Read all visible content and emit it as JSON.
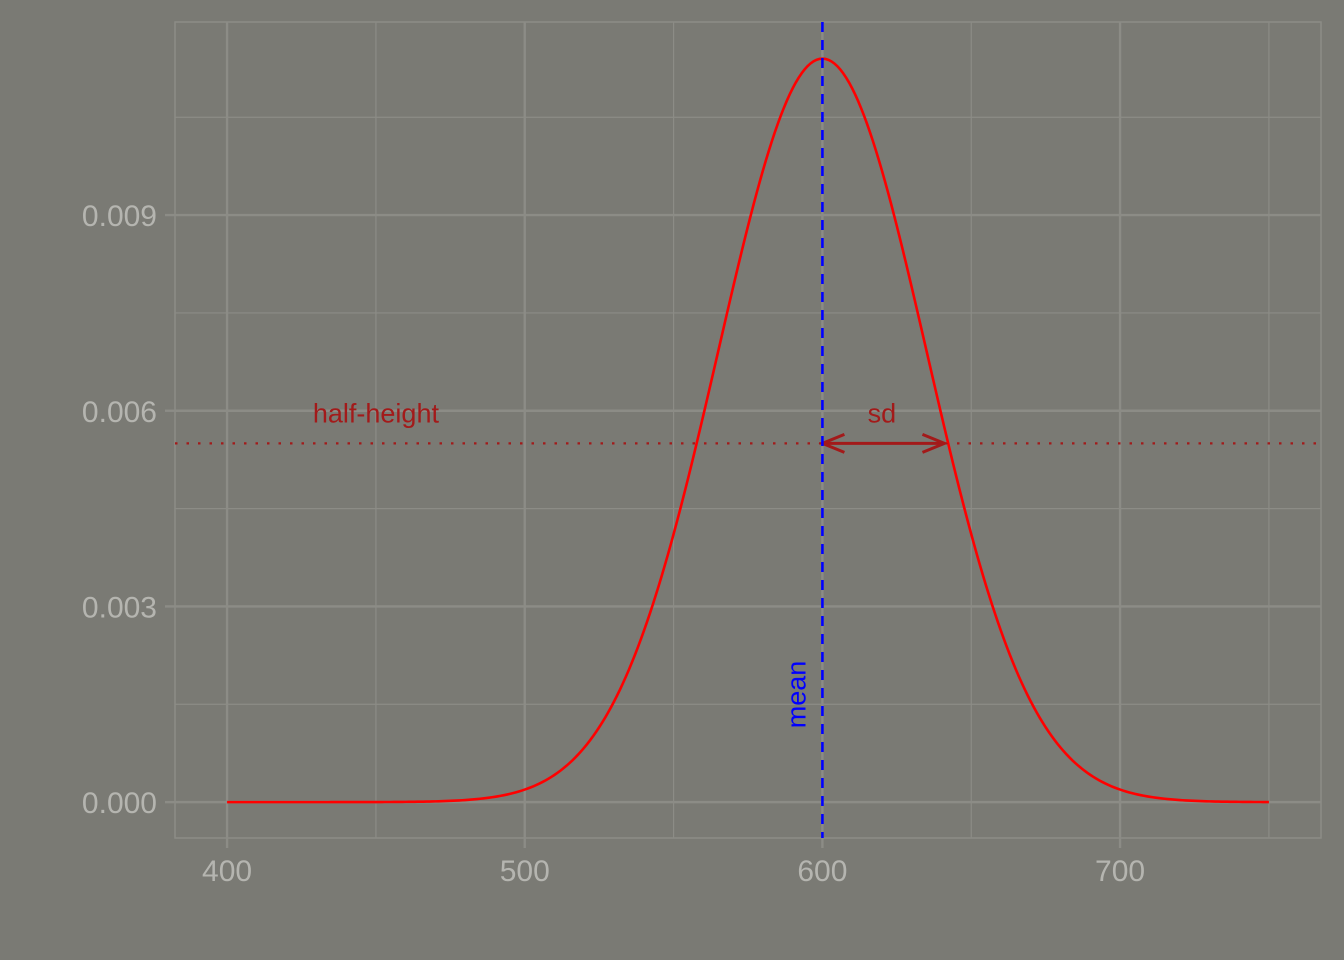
{
  "chart_data": {
    "type": "line",
    "title": "",
    "xlabel": "",
    "ylabel": "",
    "xlim": [
      382.5,
      767.5
    ],
    "ylim": [
      -0.00055,
      0.01196
    ],
    "x_ticks": [
      400,
      500,
      600,
      700
    ],
    "x_tick_labels": [
      "400",
      "500",
      "600",
      "700"
    ],
    "y_ticks": [
      0,
      0.003,
      0.006,
      0.009
    ],
    "y_tick_labels": [
      "0.000",
      "0.003",
      "0.006",
      "0.009"
    ],
    "grid": true,
    "series": [
      {
        "distribution": "normal",
        "mean": 600,
        "sd": 35,
        "x_range": [
          400,
          750
        ],
        "color": "#ff0000"
      }
    ],
    "reference_lines": {
      "mean": {
        "x": 600,
        "style": "dashed",
        "color": "#0000ff",
        "label": "mean"
      },
      "half_height": {
        "y": 0.0055,
        "style": "dotted",
        "color": "#a31a1a",
        "label": "half-height"
      }
    },
    "annotations": {
      "sd_arrow": {
        "from_x": 600,
        "to_x": 641,
        "y": 0.0055,
        "label": "sd",
        "color": "#a31a1a"
      },
      "half_height_label": {
        "text": "half-height",
        "x": 450,
        "y": 0.00597
      },
      "sd_label": {
        "text": "sd",
        "x": 620,
        "y": 0.00597
      },
      "mean_label": {
        "text": "mean",
        "x": 591,
        "y": 0.00165
      }
    },
    "colors": {
      "background": "#7a7a74",
      "grid": "#8c8c86",
      "tick_text": "#b5b5b0",
      "curve": "#ff0000",
      "mean_line": "#0000ff",
      "annotation": "#a31a1a"
    }
  }
}
